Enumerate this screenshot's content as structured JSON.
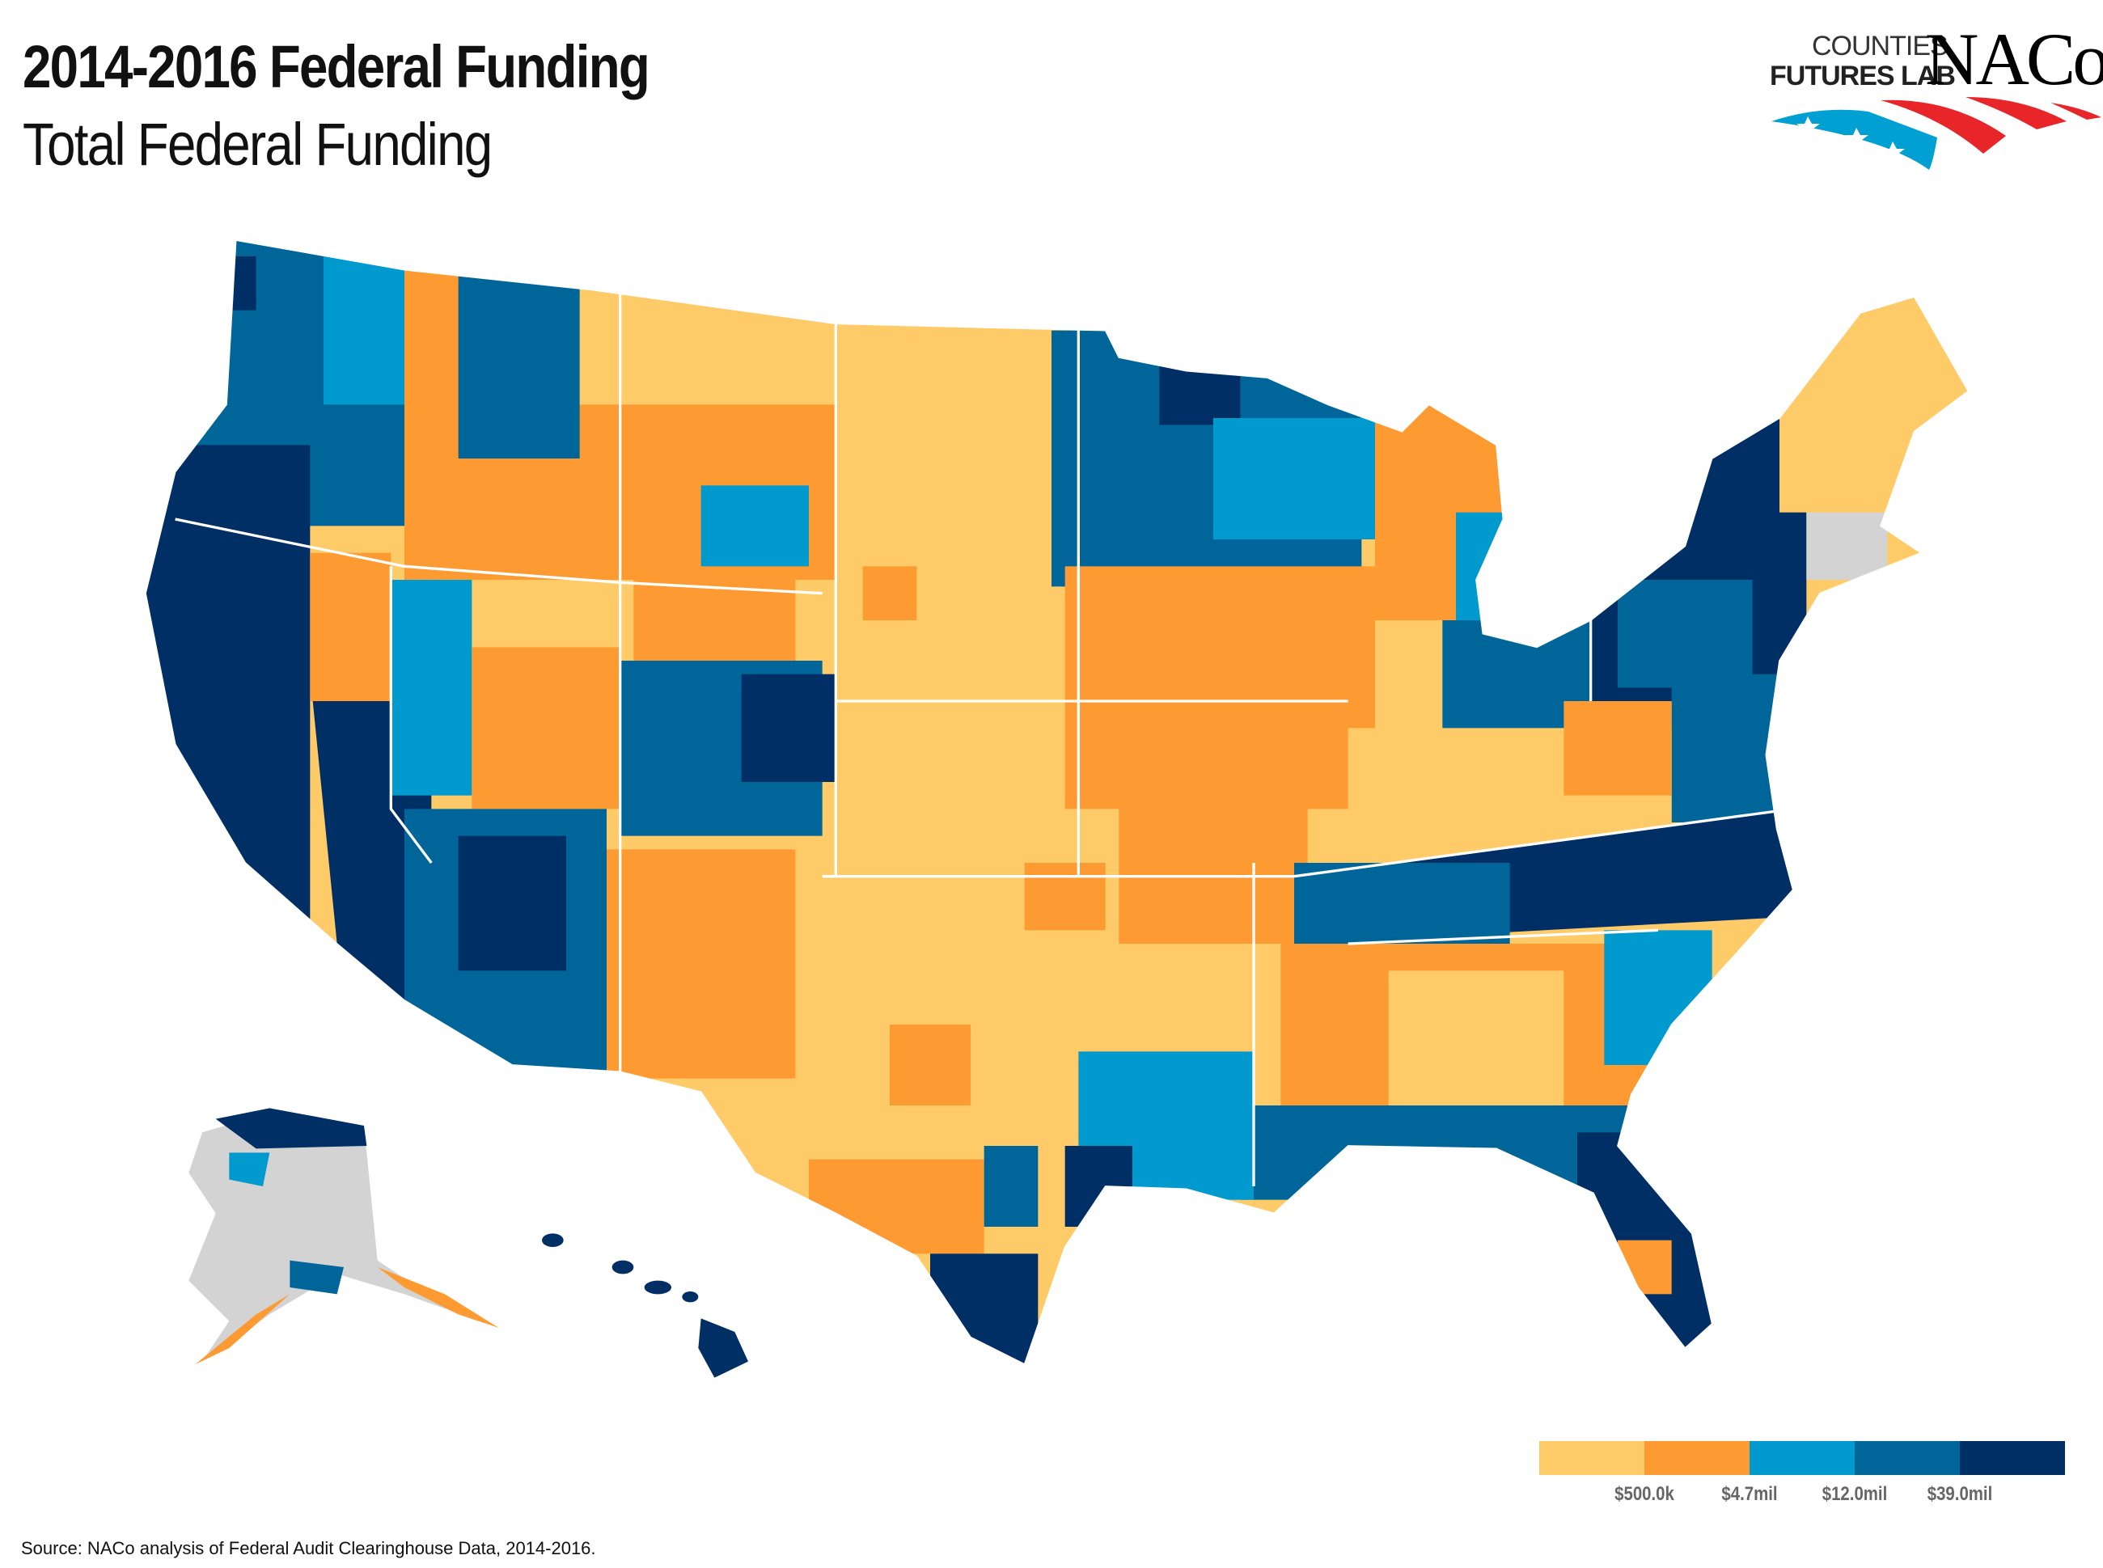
{
  "header": {
    "title": "2014-2016 Federal Funding",
    "subtitle": "Total Federal Funding"
  },
  "logo": {
    "line1": "COUNTIES",
    "line2": "FUTURES LAB",
    "brand": "NACo",
    "colors": {
      "red": "#e8262a",
      "blue": "#00a0d2"
    }
  },
  "chart_data": {
    "type": "choropleth",
    "geography": "US counties",
    "legend": {
      "placement": "bottom-right",
      "bins": [
        {
          "color": "#fecb68"
        },
        {
          "color": "#fd9b32"
        },
        {
          "color": "#009ace"
        },
        {
          "color": "#006699"
        },
        {
          "color": "#002f66"
        }
      ],
      "thresholds": [
        "$500.0k",
        "$4.7mil",
        "$12.0mil",
        "$39.0mil"
      ]
    },
    "no_data_color": "#d3d3d3"
  },
  "footer": {
    "source": "Source: NACo analysis of Federal Audit Clearinghouse Data, 2014-2016."
  }
}
